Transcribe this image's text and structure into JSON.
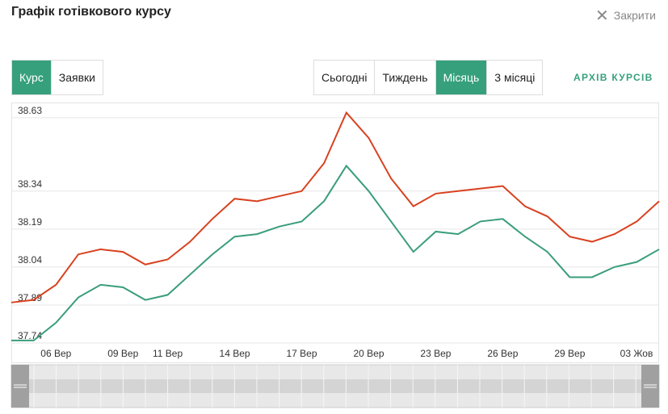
{
  "header": {
    "title": "Графік готівкового курсу",
    "close": "Закрити"
  },
  "tabs": [
    "Курс",
    "Заявки"
  ],
  "active_tab": 0,
  "periods": [
    "Сьогодні",
    "Тиждень",
    "Місяць",
    "3 місяці"
  ],
  "active_period": 2,
  "archive_link": "АРХІВ КУРСІВ",
  "chart_data": {
    "type": "line",
    "categories": [
      null,
      null,
      "06 Вер",
      null,
      null,
      "09 Вер",
      null,
      "11 Вер",
      null,
      null,
      "14 Вер",
      null,
      null,
      "17 Вер",
      null,
      null,
      "20 Вер",
      null,
      null,
      "23 Вер",
      null,
      null,
      "26 Вер",
      null,
      null,
      "29 Вер",
      null,
      null,
      "03 Жов",
      null
    ],
    "series": [
      {
        "color": "#d8411f",
        "values": [
          37.9,
          37.91,
          37.97,
          38.09,
          38.11,
          38.1,
          38.05,
          38.07,
          38.14,
          38.23,
          38.31,
          38.3,
          38.32,
          38.34,
          38.45,
          38.65,
          38.55,
          38.39,
          38.28,
          38.33,
          38.34,
          38.35,
          38.36,
          38.28,
          38.24,
          38.16,
          38.14,
          38.17,
          38.22,
          38.3
        ]
      },
      {
        "color": "#3a9d7c",
        "values": [
          37.75,
          37.75,
          37.82,
          37.92,
          37.97,
          37.96,
          37.91,
          37.93,
          38.01,
          38.09,
          38.16,
          38.17,
          38.2,
          38.22,
          38.3,
          38.44,
          38.34,
          38.22,
          38.1,
          38.18,
          38.17,
          38.22,
          38.23,
          38.16,
          38.1,
          38.0,
          38.0,
          38.04,
          38.06,
          38.11
        ]
      }
    ],
    "ylim": [
      37.74,
      38.69
    ],
    "yticks": [
      37.74,
      37.89,
      38.04,
      38.19,
      38.34,
      38.63
    ],
    "grid": true
  }
}
